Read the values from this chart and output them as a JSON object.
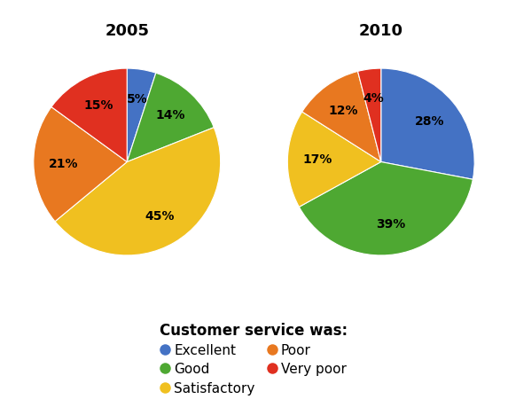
{
  "title_2005": "2005",
  "title_2010": "2010",
  "categories": [
    "Excellent",
    "Good",
    "Satisfactory",
    "Poor",
    "Very poor"
  ],
  "colors": [
    "#4472C4",
    "#4EA832",
    "#F0C020",
    "#E87820",
    "#E03020"
  ],
  "values_2005": [
    5,
    14,
    45,
    21,
    15
  ],
  "values_2010": [
    28,
    39,
    17,
    12,
    4
  ],
  "legend_title": "Customer service was:",
  "legend_col1": [
    "Excellent",
    "Satisfactory",
    "Very poor"
  ],
  "legend_col2": [
    "Good",
    "Poor"
  ],
  "legend_colors_col1": [
    "#4472C4",
    "#F0C020",
    "#E03020"
  ],
  "legend_colors_col2": [
    "#4EA832",
    "#E87820"
  ],
  "startangle_2005": 90,
  "startangle_2010": 90,
  "background_color": "#ffffff",
  "label_fontsize": 10,
  "title_fontsize": 13,
  "legend_fontsize": 11,
  "legend_title_fontsize": 12
}
